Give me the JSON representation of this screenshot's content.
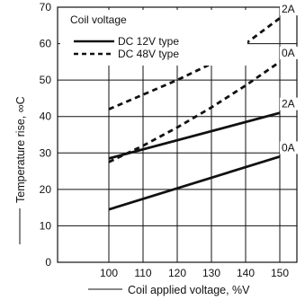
{
  "chart_data": {
    "type": "line",
    "xlabel": "Coil applied voltage, %V",
    "ylabel": "Temperature rise, ∞C",
    "xlim": [
      85,
      155
    ],
    "ylim": [
      0,
      70
    ],
    "x_ticks": [
      "100",
      "110",
      "120",
      "130",
      "140",
      "150"
    ],
    "y_ticks": [
      "0",
      "10",
      "20",
      "30",
      "40",
      "50",
      "60",
      "70"
    ],
    "grid": true,
    "legend": {
      "title": "Coil voltage",
      "placement": "top-left",
      "entries": [
        "DC 12V type",
        "DC 48V type"
      ]
    },
    "series": [
      {
        "group": "DC 12V type",
        "label": "0A",
        "style": "solid",
        "x": [
          100,
          150
        ],
        "y": [
          14.5,
          29.0
        ]
      },
      {
        "group": "DC 12V type",
        "label": "2A",
        "style": "solid",
        "x": [
          100,
          150
        ],
        "y": [
          28.5,
          41.0
        ]
      },
      {
        "group": "DC 48V type",
        "label": "0A",
        "style": "dashed",
        "x": [
          100,
          110,
          120,
          130,
          140,
          150
        ],
        "y": [
          27.5,
          32.0,
          37.0,
          42.5,
          48.5,
          55.0
        ]
      },
      {
        "group": "DC 48V type",
        "label": "2A",
        "style": "dashed",
        "x": [
          100,
          110,
          120,
          130,
          140,
          150
        ],
        "y": [
          42.0,
          46.0,
          50.0,
          54.5,
          60.0,
          67.0
        ]
      }
    ]
  }
}
